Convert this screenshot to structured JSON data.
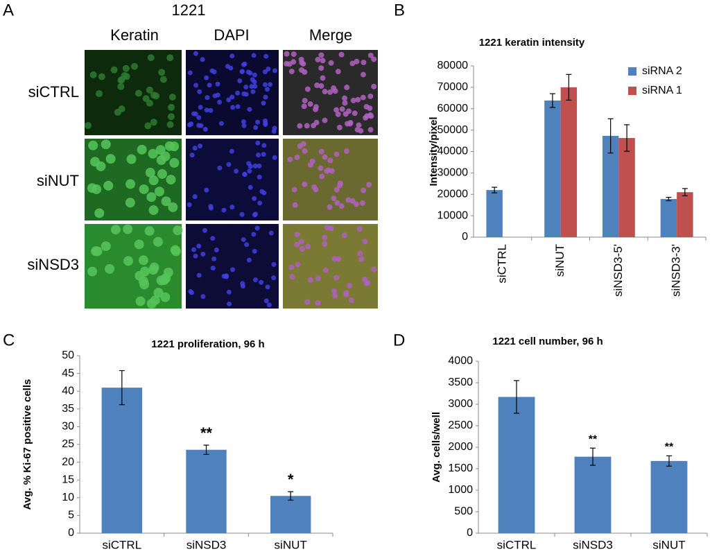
{
  "panel_a": {
    "panel": "A",
    "title": "1221",
    "columns": [
      "Keratin",
      "DAPI",
      "Merge"
    ],
    "rows": [
      "siCTRL",
      "siNUT",
      "siNSD3"
    ]
  },
  "chart_data": [
    {
      "type": "bar",
      "panel": "B",
      "title": "1221 keratin intensity",
      "y_label": "Intensity/pixel",
      "categories": [
        "siCTRL",
        "siNUT",
        "siNSD3-5'",
        "siNSD3-3'"
      ],
      "series": [
        {
          "name": "siRNA 2",
          "color": "#4f81bd",
          "values": [
            22000,
            63800,
            47300,
            17800
          ],
          "errors": [
            1300,
            3200,
            8000,
            800
          ]
        },
        {
          "name": "siRNA 1",
          "color": "#c0504d",
          "values": [
            null,
            70000,
            46300,
            21000
          ],
          "errors": [
            null,
            6000,
            6200,
            1700
          ]
        }
      ],
      "ylim": [
        0,
        80000
      ],
      "yticks": [
        0,
        10000,
        20000,
        30000,
        40000,
        50000,
        60000,
        70000,
        80000
      ],
      "legend": "top-right"
    },
    {
      "type": "bar",
      "panel": "C",
      "title": "1221 proliferation, 96 h",
      "y_label": "Avg. % Ki-67 positive cells",
      "categories": [
        "siCTRL",
        "siNSD3",
        "siNUT"
      ],
      "series": [
        {
          "color": "#4f81bd",
          "values": [
            41,
            23.5,
            10.5
          ],
          "errors": [
            4.8,
            1.3,
            1.2
          ],
          "annotations": [
            null,
            "**",
            "*"
          ]
        }
      ],
      "ylim": [
        0,
        50
      ],
      "yticks": [
        0,
        5,
        10,
        15,
        20,
        25,
        30,
        35,
        40,
        45,
        50
      ]
    },
    {
      "type": "bar",
      "panel": "D",
      "title": "1221 cell number, 96 h",
      "y_label": "Avg. cells/well",
      "categories": [
        "siCTRL",
        "siNSD3",
        "siNUT"
      ],
      "series": [
        {
          "color": "#4f81bd",
          "values": [
            3170,
            1780,
            1680
          ],
          "errors": [
            380,
            200,
            120
          ],
          "annotations": [
            null,
            "**",
            "**"
          ]
        }
      ],
      "ylim": [
        0,
        4000
      ],
      "yticks": [
        0,
        500,
        1000,
        1500,
        2000,
        2500,
        3000,
        3500,
        4000
      ]
    }
  ]
}
